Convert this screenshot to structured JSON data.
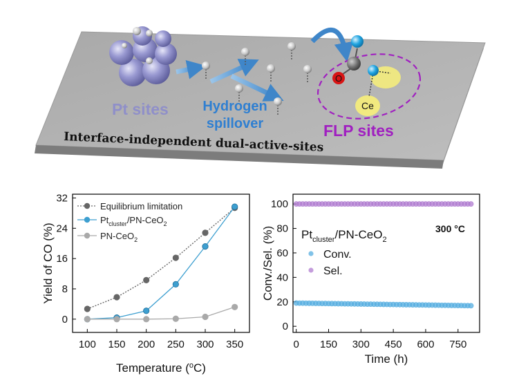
{
  "banner": {
    "pt_sites": "Pt sites",
    "hydrogen": "Hydrogen",
    "spillover": "spillover",
    "flp_sites": "FLP sites",
    "o_label": "O",
    "ce_label": "Ce",
    "caption": "Interface-independent dual-active-sites"
  },
  "colors": {
    "pt": "#8f8fc9",
    "hydrogen_text": "#2f7fd1",
    "flp_text": "#a020c0",
    "arrow": "#3f86c9",
    "purple_dash": "#a020c0",
    "o_red": "#d81414",
    "ce_yellow": "#f4ec7c",
    "blue_atom": "#1fa4e0",
    "slab_top": "#b2b2b2",
    "slab_edge": "#8a8a8a"
  },
  "chart_data": [
    {
      "type": "line",
      "xlabel": "Temperature (oC)",
      "xlabel_parts": {
        "main": "Temperature (",
        "sup": "o",
        "tail": "C)"
      },
      "ylabel": "Yield of CO (%)",
      "x": [
        100,
        150,
        200,
        250,
        300,
        350
      ],
      "xlim": [
        75,
        375
      ],
      "ylim": [
        -3.5,
        33
      ],
      "xticks": [
        "100",
        "150",
        "200",
        "250",
        "300",
        "350"
      ],
      "yticks": [
        0,
        8,
        16,
        24,
        32
      ],
      "ytick_labels": [
        "0",
        "8",
        "16",
        "24",
        "32"
      ],
      "legend_position": "top-left",
      "series": [
        {
          "name": "Equilibrium limitation",
          "legend_parts": {
            "main": "Equilibrium limitation",
            "sub": "",
            "tail": ""
          },
          "values": [
            2.7,
            5.8,
            10.3,
            16.2,
            22.8,
            29.4
          ],
          "color": "#666666",
          "style": "dotted"
        },
        {
          "name": "Ptcluster/PN-CeO2",
          "legend_parts": {
            "main": "Pt",
            "sub": "cluster",
            "tail": "/PN-CeO",
            "sub2": "2"
          },
          "values": [
            0.0,
            0.4,
            2.2,
            9.2,
            19.2,
            29.7
          ],
          "color": "#3d9fd0",
          "style": "solid"
        },
        {
          "name": "PN-CeO2",
          "legend_parts": {
            "main": "PN-CeO",
            "sub": "2",
            "tail": ""
          },
          "values": [
            0.0,
            0.0,
            0.0,
            0.1,
            0.6,
            3.2
          ],
          "color": "#a9a9a9",
          "style": "solid"
        }
      ]
    },
    {
      "type": "scatter",
      "xlabel": "Time (h)",
      "ylabel": "Conv./Sel. (%)",
      "xlim": [
        -15,
        850
      ],
      "ylim": [
        -5,
        108
      ],
      "xticks": [
        0,
        150,
        300,
        450,
        600,
        750
      ],
      "xtick_labels": [
        "0",
        "150",
        "300",
        "450",
        "600",
        "750"
      ],
      "yticks": [
        0,
        20,
        40,
        60,
        80,
        100
      ],
      "ytick_labels": [
        "0",
        "20",
        "40",
        "60",
        "80",
        "100"
      ],
      "annotation": "300 °C",
      "catalyst_label": {
        "main": "Pt",
        "sub": "cluster",
        "tail": "/PN-CeO",
        "sub2": "2"
      },
      "legend_position": "middle-left",
      "series": [
        {
          "name": "Conv.",
          "x_range": [
            0,
            820
          ],
          "step": 15,
          "y_start": 19.0,
          "y_end": 16.8,
          "color": "#56aee0"
        },
        {
          "name": "Sel.",
          "x_range": [
            0,
            820
          ],
          "step": 15,
          "y_start": 100.0,
          "y_end": 100.0,
          "color": "#b07cd0"
        }
      ]
    }
  ]
}
